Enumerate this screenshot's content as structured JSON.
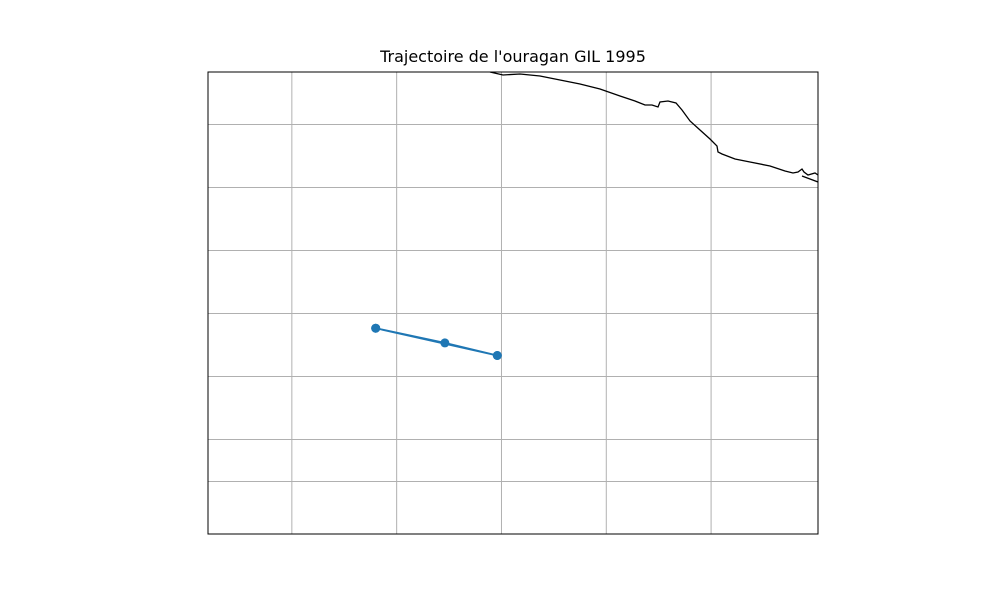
{
  "map": {
    "title": "Trajectoire de l'ouragan GIL 1995",
    "colors": {
      "track": "#1f77b4",
      "grid": "#b0b0b0",
      "coastline": "#000000",
      "frame": "#000000"
    },
    "track_points": [
      {
        "lon": -116.0,
        "lat": 17.3
      },
      {
        "lon": -112.7,
        "lat": 16.6
      },
      {
        "lon": -110.2,
        "lat": 16.0
      },
      {
        "lon": -116.0,
        "lat": 17.3
      },
      {
        "lon": -110.2,
        "lat": 16.0
      }
    ]
  }
}
